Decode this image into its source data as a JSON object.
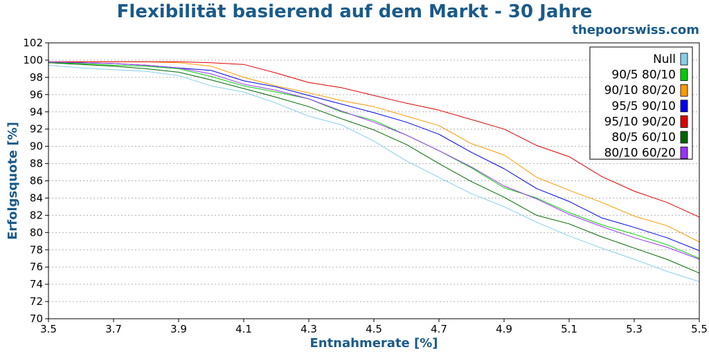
{
  "chart_data": {
    "type": "line",
    "title": "Flexibilität basierend auf dem Markt - 30 Jahre",
    "subtitle": "thepoorswiss.com",
    "xlabel": "Entnahmerate [%]",
    "ylabel": "Erfolgsquote [%]",
    "xlim": [
      3.5,
      5.5
    ],
    "ylim": [
      70,
      102
    ],
    "x_ticks": [
      "3.5",
      "3.7",
      "3.9",
      "4.1",
      "4.3",
      "4.5",
      "4.7",
      "4.9",
      "5.1",
      "5.3",
      "5.5"
    ],
    "y_ticks": [
      "70",
      "72",
      "74",
      "76",
      "78",
      "80",
      "82",
      "84",
      "86",
      "88",
      "90",
      "92",
      "94",
      "96",
      "98",
      "100",
      "102"
    ],
    "grid": true,
    "legend_position": "top-right",
    "x": [
      3.5,
      3.6,
      3.7,
      3.8,
      3.9,
      4.0,
      4.1,
      4.2,
      4.3,
      4.4,
      4.5,
      4.6,
      4.7,
      4.8,
      4.9,
      5.0,
      5.1,
      5.2,
      5.3,
      5.4,
      5.5
    ],
    "series": [
      {
        "name": "Null",
        "color": "#87ceeb",
        "values": [
          99.4,
          99.1,
          98.9,
          98.7,
          98.2,
          97.0,
          96.3,
          95.0,
          93.5,
          92.5,
          90.6,
          88.3,
          86.4,
          84.5,
          83.0,
          81.2,
          79.6,
          78.2,
          76.9,
          75.5,
          74.3
        ]
      },
      {
        "name": "90/5 80/10",
        "color": "#00cc00",
        "values": [
          99.7,
          99.6,
          99.4,
          99.3,
          99.0,
          98.1,
          97.0,
          96.3,
          95.5,
          94.0,
          93.0,
          91.3,
          89.5,
          87.5,
          85.2,
          84.0,
          82.3,
          80.9,
          79.8,
          78.6,
          77.0
        ]
      },
      {
        "name": "90/10 80/20",
        "color": "#ff9900",
        "values": [
          99.8,
          99.8,
          99.8,
          99.8,
          99.7,
          99.3,
          98.0,
          97.0,
          96.2,
          95.3,
          94.6,
          93.5,
          92.4,
          90.3,
          89.0,
          86.4,
          84.9,
          83.5,
          81.9,
          80.8,
          78.9
        ]
      },
      {
        "name": "95/5 90/10",
        "color": "#0000ee",
        "values": [
          99.8,
          99.7,
          99.6,
          99.4,
          99.1,
          98.8,
          97.6,
          96.9,
          95.9,
          94.9,
          93.9,
          92.8,
          91.4,
          89.3,
          87.4,
          85.1,
          83.6,
          81.7,
          80.6,
          79.4,
          77.9
        ]
      },
      {
        "name": "95/10 90/20",
        "color": "#dd0000",
        "values": [
          99.8,
          99.8,
          99.8,
          99.8,
          99.8,
          99.7,
          99.5,
          98.5,
          97.4,
          96.8,
          95.9,
          95.0,
          94.2,
          93.1,
          92.0,
          90.1,
          88.8,
          86.5,
          84.8,
          83.5,
          81.8
        ]
      },
      {
        "name": "80/5 60/10",
        "color": "#006600",
        "values": [
          99.7,
          99.5,
          99.3,
          99.0,
          98.6,
          97.7,
          96.7,
          95.7,
          94.6,
          93.2,
          91.9,
          90.2,
          88.0,
          85.9,
          84.1,
          82.0,
          81.0,
          79.5,
          78.2,
          76.9,
          75.3
        ]
      },
      {
        "name": "80/10 60/20",
        "color": "#9933ff",
        "values": [
          99.8,
          99.7,
          99.6,
          99.4,
          99.1,
          98.4,
          97.2,
          96.5,
          95.5,
          94.1,
          92.8,
          91.3,
          89.5,
          87.6,
          85.4,
          83.9,
          82.1,
          80.7,
          79.4,
          78.3,
          76.9
        ]
      }
    ]
  }
}
